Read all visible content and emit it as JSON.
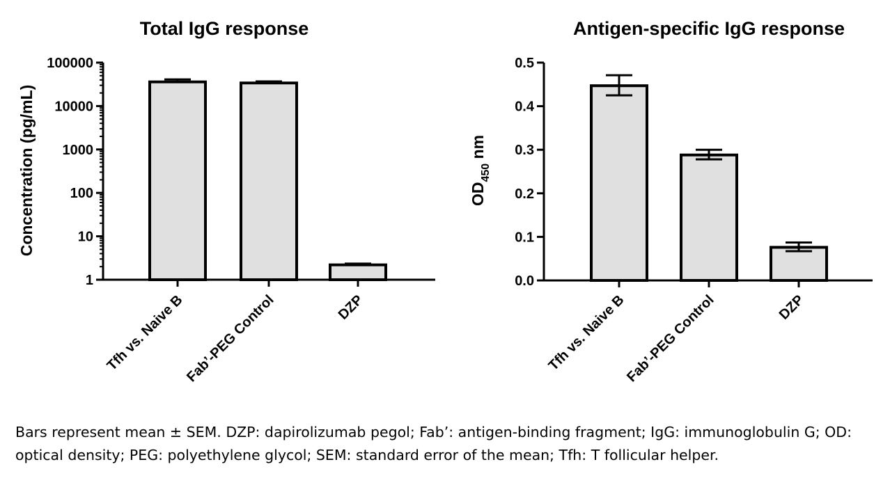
{
  "chart_data": [
    {
      "type": "bar",
      "title": "Total IgG response",
      "ylabel": "Concentration (pg/mL)",
      "xlabel": "",
      "yscale": "log",
      "ylim": [
        1,
        100000
      ],
      "yticks": [
        1,
        10,
        100,
        1000,
        10000,
        100000
      ],
      "ytick_labels": [
        "1",
        "10",
        "100",
        "1000",
        "10000",
        "100000"
      ],
      "categories": [
        "Tfh vs. Naive B",
        "Fab’-PEG Control",
        "DZP"
      ],
      "values": [
        36000,
        34000,
        2.2
      ],
      "error_upper": [
        41000,
        37000,
        2.35
      ],
      "grid": false,
      "bar_color": "#e0e0e0",
      "edge_color": "#000000"
    },
    {
      "type": "bar",
      "title": "Antigen-specific IgG response",
      "ylabel_main": "OD",
      "ylabel_sub": "450",
      "ylabel_suffix": " nm",
      "xlabel": "",
      "yscale": "linear",
      "ylim": [
        0,
        0.5
      ],
      "yticks": [
        0,
        0.1,
        0.2,
        0.3,
        0.4,
        0.5
      ],
      "ytick_labels": [
        "0.0",
        "0.1",
        "0.2",
        "0.3",
        "0.4",
        "0.5"
      ],
      "categories": [
        "Tfh vs. Naive B",
        "Fab’-PEG Control",
        "DZP"
      ],
      "values": [
        0.447,
        0.288,
        0.076
      ],
      "error_upper": [
        0.471,
        0.3,
        0.087
      ],
      "error_lower": [
        0.425,
        0.278,
        0.067
      ],
      "grid": false,
      "bar_color": "#e0e0e0",
      "edge_color": "#000000"
    }
  ],
  "footnote": "Bars represent mean ± SEM. DZP: dapirolizumab pegol; Fab’: antigen-binding fragment; IgG: immunoglobulin G; OD: optical density; PEG: polyethylene glycol; SEM: standard error of the mean; Tfh: T follicular helper."
}
